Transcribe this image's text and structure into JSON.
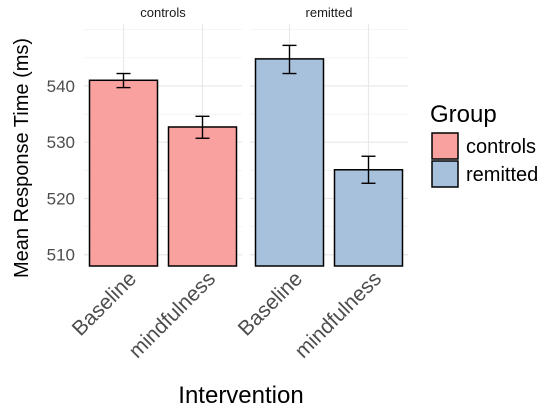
{
  "chart_data": {
    "type": "bar",
    "facets": [
      "controls",
      "remitted"
    ],
    "categories": [
      "Baseline",
      "mindfulness"
    ],
    "series": [
      {
        "name": "controls",
        "facet": "controls",
        "values": [
          541.0,
          532.7
        ],
        "error_low": [
          539.7,
          530.7
        ],
        "error_high": [
          542.2,
          534.6
        ],
        "color": "#F8A19E"
      },
      {
        "name": "remitted",
        "facet": "remitted",
        "values": [
          544.8,
          525.1
        ],
        "error_low": [
          542.2,
          522.7
        ],
        "error_high": [
          547.2,
          527.5
        ],
        "color": "#A7C1DD"
      }
    ],
    "xlabel": "Intervention",
    "ylabel": "Mean Response Time (ms)",
    "ylim": [
      508,
      551
    ],
    "yticks": [
      510,
      520,
      530,
      540
    ],
    "grid": true,
    "legend": {
      "title": "Group",
      "placement": "right",
      "entries": [
        "controls",
        "remitted"
      ]
    }
  }
}
